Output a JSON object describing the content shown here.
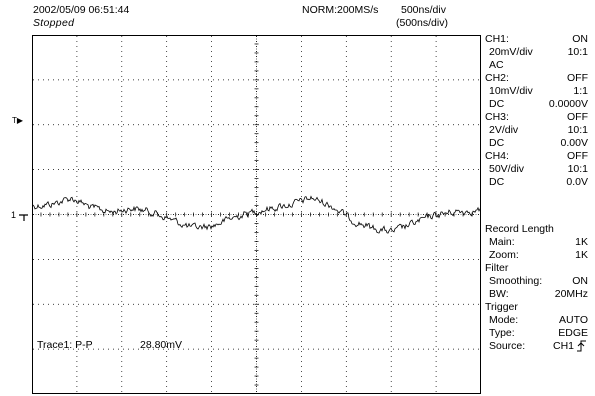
{
  "header": {
    "datetime": "2002/05/09  06:51:44",
    "status": "Stopped",
    "acquisition": "NORM:200MS/s",
    "timebase": "500ns/div",
    "timebase_zoom": "(500ns/div)"
  },
  "markers": {
    "trigger_level": "T",
    "channel1_ground": "1"
  },
  "measurement": {
    "label": "Trace1: P-P",
    "value": "28.80mV"
  },
  "channels": [
    {
      "name": "CH1:",
      "state": "ON",
      "vdiv": "20mV/div",
      "probe": "10:1",
      "coupling": "AC",
      "offset": ""
    },
    {
      "name": "CH2:",
      "state": "OFF",
      "vdiv": "10mV/div",
      "probe": "1:1",
      "coupling": "DC",
      "offset": "0.0000V"
    },
    {
      "name": "CH3:",
      "state": "OFF",
      "vdiv": "2V/div",
      "probe": "10:1",
      "coupling": "DC",
      "offset": "0.00V"
    },
    {
      "name": "CH4:",
      "state": "OFF",
      "vdiv": "50V/div",
      "probe": "10:1",
      "coupling": "DC",
      "offset": "0.0V"
    }
  ],
  "record_length": {
    "title": "Record Length",
    "main_label": "Main:",
    "main_value": "1K",
    "zoom_label": "Zoom:",
    "zoom_value": "1K"
  },
  "filter": {
    "title": "Filter",
    "smoothing_label": "Smoothing:",
    "smoothing_value": "ON",
    "bw_label": "BW:",
    "bw_value": "20MHz"
  },
  "trigger": {
    "title": "Trigger",
    "mode_label": "Mode:",
    "mode_value": "AUTO",
    "type_label": "Type:",
    "type_value": "EDGE",
    "source_label": "Source:",
    "source_value": "CH1",
    "slope_icon": "rising-edge-icon"
  },
  "colors": {
    "background": "#ffffff",
    "trace": "#000000",
    "grid": "#000000"
  }
}
